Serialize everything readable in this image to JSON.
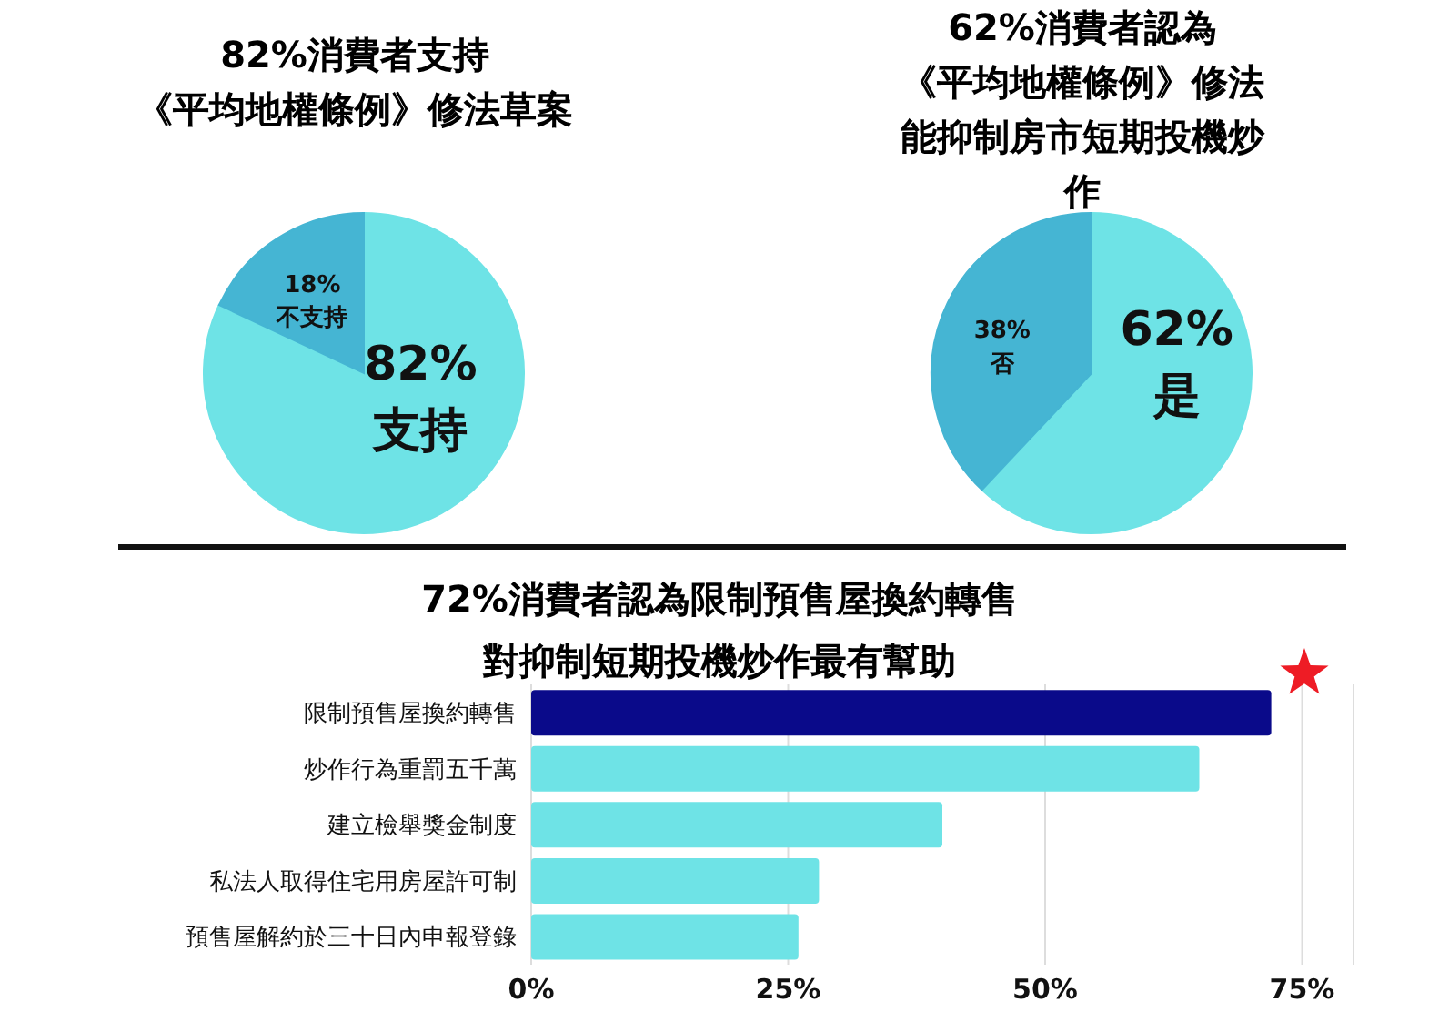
{
  "chart_data": [
    {
      "type": "pie",
      "title": "82%消費者支持",
      "subtitle": "《平均地權條例》修法草案",
      "categories": [
        "支持",
        "不支持"
      ],
      "values": [
        82,
        18
      ],
      "value_labels": [
        "82%",
        "18%"
      ],
      "colors": [
        "#6ee3e6",
        "#45b5d3"
      ]
    },
    {
      "type": "pie",
      "title": "62%消費者認為",
      "subtitle": "《平均地權條例》修法能抑制房市短期投機炒作",
      "categories": [
        "是",
        "否"
      ],
      "values": [
        62,
        38
      ],
      "value_labels": [
        "62%",
        "38%"
      ],
      "colors": [
        "#6ee3e6",
        "#45b5d3"
      ]
    },
    {
      "type": "bar",
      "orientation": "horizontal",
      "title": "72%消費者認為限制預售屋換約轉售",
      "subtitle": "對抑制短期投機炒作最有幫助",
      "categories": [
        "限制預售屋換約轉售",
        "炒作行為重罰五千萬",
        "建立檢舉獎金制度",
        "私法人取得住宅用房屋許可制",
        "預售屋解約於三十日內申報登錄"
      ],
      "values": [
        72,
        65,
        40,
        28,
        26
      ],
      "colors": [
        "#0a0a8a",
        "#6ee3e6",
        "#6ee3e6",
        "#6ee3e6",
        "#6ee3e6"
      ],
      "xlim": [
        0,
        80
      ],
      "xticks": [
        {
          "value": 0,
          "label": "0%"
        },
        {
          "value": 25,
          "label": "25%"
        },
        {
          "value": 50,
          "label": "50%"
        },
        {
          "value": 75,
          "label": "75%"
        }
      ],
      "grid": "x"
    }
  ]
}
